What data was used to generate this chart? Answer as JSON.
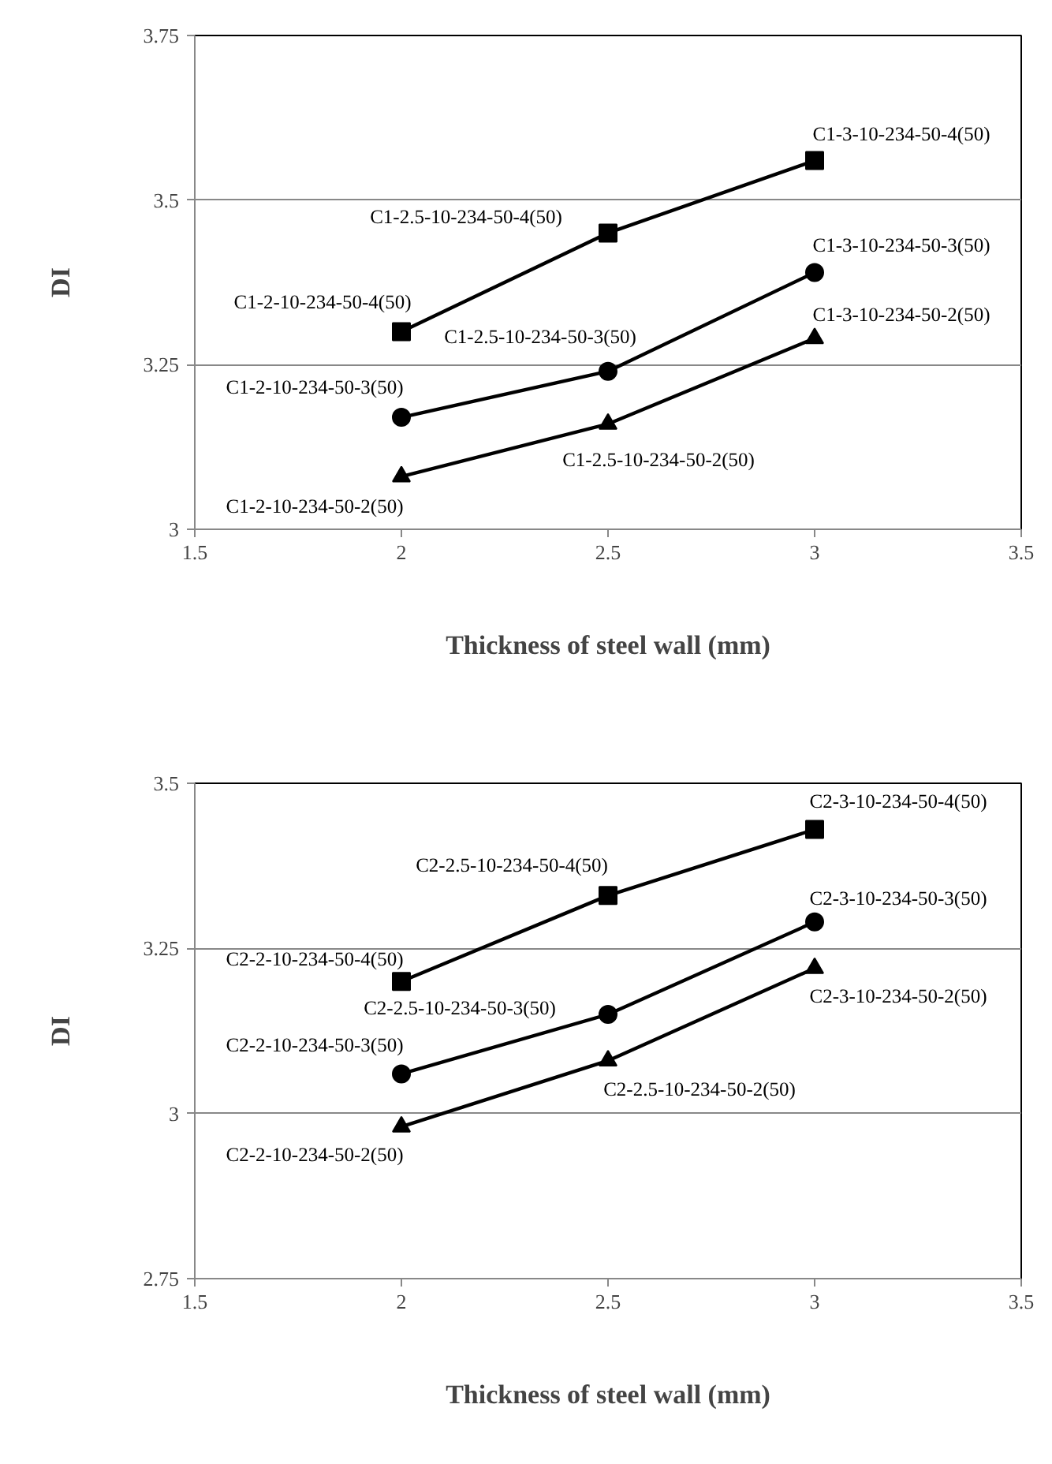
{
  "chart_data": [
    {
      "type": "line",
      "xlabel": "Thickness of steel wall (mm)",
      "ylabel": "DI",
      "xlim": [
        1.5,
        3.5
      ],
      "xticks": [
        1.5,
        2,
        2.5,
        3,
        3.5
      ],
      "ylim": [
        3,
        3.75
      ],
      "yticks": [
        3,
        3.25,
        3.5,
        3.75
      ],
      "grid": "y",
      "line_style": "solid",
      "x": [
        2,
        2.5,
        3
      ],
      "series": [
        {
          "color": "#000000",
          "marker": "square",
          "values": [
            3.3,
            3.45,
            3.56
          ]
        },
        {
          "color": "#000000",
          "marker": "circle",
          "values": [
            3.17,
            3.24,
            3.39
          ]
        },
        {
          "color": "#000000",
          "marker": "triangle",
          "values": [
            3.08,
            3.16,
            3.29
          ]
        }
      ],
      "annotations": [
        {
          "text": "C1-2-10-234-50-4(50)",
          "x": 2,
          "y": 3.3
        },
        {
          "text": "C1-2.5-10-234-50-4(50)",
          "x": 2.5,
          "y": 3.45
        },
        {
          "text": "C1-3-10-234-50-4(50)",
          "x": 3,
          "y": 3.56
        },
        {
          "text": "C1-2-10-234-50-3(50)",
          "x": 2,
          "y": 3.17
        },
        {
          "text": "C1-2.5-10-234-50-3(50)",
          "x": 2.5,
          "y": 3.24
        },
        {
          "text": "C1-3-10-234-50-3(50)",
          "x": 3,
          "y": 3.39
        },
        {
          "text": "C1-2-10-234-50-2(50)",
          "x": 2,
          "y": 3.08
        },
        {
          "text": "C1-2.5-10-234-50-2(50)",
          "x": 2.5,
          "y": 3.16
        },
        {
          "text": "C1-3-10-234-50-2(50)",
          "x": 3,
          "y": 3.29
        }
      ]
    },
    {
      "type": "line",
      "xlabel": "Thickness of steel wall (mm)",
      "ylabel": "DI",
      "xlim": [
        1.5,
        3.5
      ],
      "xticks": [
        1.5,
        2,
        2.5,
        3,
        3.5
      ],
      "ylim": [
        2.75,
        3.5
      ],
      "yticks": [
        2.75,
        3,
        3.25,
        3.5
      ],
      "grid": "y",
      "line_style": "solid",
      "x": [
        2,
        2.5,
        3
      ],
      "series": [
        {
          "color": "#000000",
          "marker": "square",
          "values": [
            3.2,
            3.33,
            3.43
          ]
        },
        {
          "color": "#000000",
          "marker": "circle",
          "values": [
            3.06,
            3.15,
            3.29
          ]
        },
        {
          "color": "#000000",
          "marker": "triangle",
          "values": [
            2.98,
            3.08,
            3.22
          ]
        }
      ],
      "annotations": [
        {
          "text": "C2-2-10-234-50-4(50)",
          "x": 2,
          "y": 3.2
        },
        {
          "text": "C2-2.5-10-234-50-4(50)",
          "x": 2.5,
          "y": 3.33
        },
        {
          "text": "C2-3-10-234-50-4(50)",
          "x": 3,
          "y": 3.43
        },
        {
          "text": "C2-2-10-234-50-3(50)",
          "x": 2,
          "y": 3.06
        },
        {
          "text": "C2-2.5-10-234-50-3(50)",
          "x": 2.5,
          "y": 3.15
        },
        {
          "text": "C2-3-10-234-50-3(50)",
          "x": 3,
          "y": 3.29
        },
        {
          "text": "C2-2-10-234-50-2(50)",
          "x": 2,
          "y": 2.98
        },
        {
          "text": "C2-2.5-10-234-50-2(50)",
          "x": 2.5,
          "y": 3.08
        },
        {
          "text": "C2-3-10-234-50-2(50)",
          "x": 3,
          "y": 3.22
        }
      ]
    }
  ]
}
